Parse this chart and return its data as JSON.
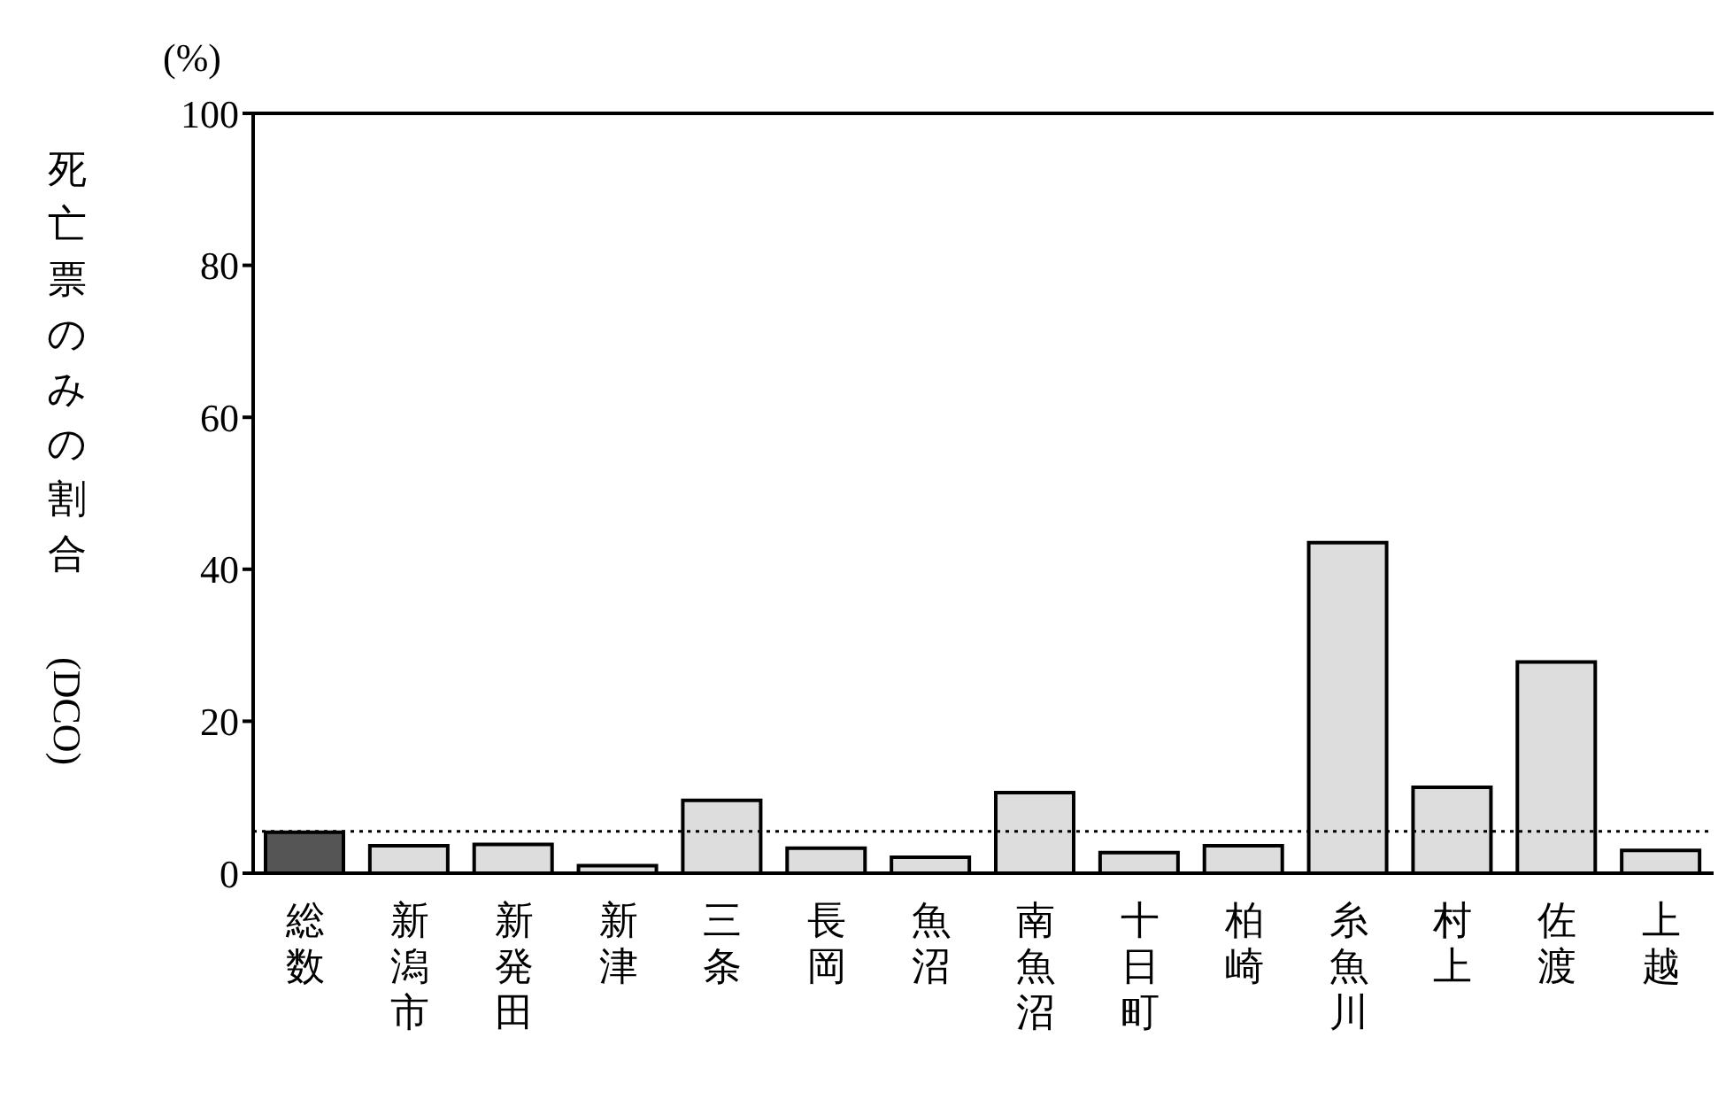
{
  "chart_data": {
    "type": "bar",
    "ylabel": "死亡票のみの割合 (DCO)",
    "annotations": [
      "(%)"
    ],
    "categories": [
      "総数",
      "新潟市",
      "新発田",
      "新津",
      "三条",
      "長岡",
      "魚沼",
      "南魚沼",
      "十日町",
      "柏崎",
      "糸魚川",
      "村上",
      "佐渡",
      "上越"
    ],
    "values": [
      5.4,
      3.6,
      3.8,
      1.0,
      9.6,
      3.3,
      2.1,
      10.6,
      2.7,
      3.6,
      43.5,
      11.3,
      27.8,
      3.0
    ],
    "colors": [
      "#555555",
      "#dddddd",
      "#dddddd",
      "#dddddd",
      "#dddddd",
      "#dddddd",
      "#dddddd",
      "#dddddd",
      "#dddddd",
      "#dddddd",
      "#dddddd",
      "#dddddd",
      "#dddddd",
      "#dddddd"
    ],
    "ylim": [
      0,
      100
    ],
    "yticks": [
      0,
      20,
      40,
      60,
      80,
      100
    ],
    "grid": false,
    "ref_lines": [
      {
        "axis": "y",
        "value": 5.5,
        "line_style": "dotted",
        "color": "#000000"
      }
    ]
  }
}
